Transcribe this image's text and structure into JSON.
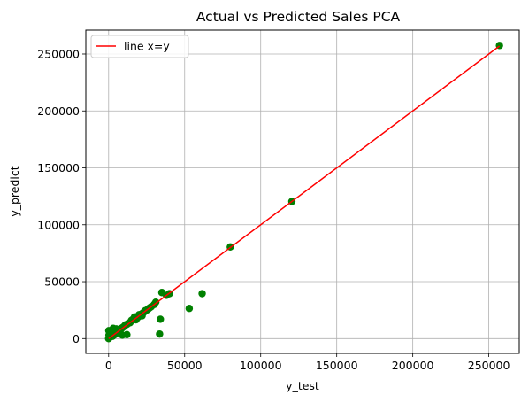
{
  "chart_data": {
    "type": "scatter",
    "title": "Actual vs Predicted Sales PCA",
    "xlabel": "y_test",
    "ylabel": "y_predict",
    "xlim": [
      -15000,
      270000
    ],
    "ylim": [
      -13000,
      271000
    ],
    "xticks": [
      0,
      50000,
      100000,
      150000,
      200000,
      250000
    ],
    "xtick_labels": [
      "0",
      "50000",
      "100000",
      "150000",
      "200000",
      "250000"
    ],
    "yticks": [
      0,
      50000,
      100000,
      150000,
      200000,
      250000
    ],
    "ytick_labels": [
      "0",
      "50000",
      "100000",
      "150000",
      "200000",
      "250000"
    ],
    "grid": true,
    "legend_position": "top-left",
    "series": [
      {
        "kind": "line",
        "name": "line x=y",
        "color": "#ff0000",
        "x": [
          0,
          257000
        ],
        "y": [
          0,
          257000
        ]
      },
      {
        "kind": "scatter",
        "color": "#008000",
        "x": [
          257000,
          120500,
          80000,
          40000,
          38000,
          35000,
          61500,
          53000,
          34000,
          33500,
          31000,
          28000,
          27000,
          25000,
          23000,
          21000,
          19500,
          18000,
          16000,
          14000,
          12000,
          10500,
          9000,
          8000,
          7000,
          6000,
          5000,
          4000,
          3000,
          2000,
          1000,
          500,
          1500,
          2500,
          3500,
          4500,
          5500,
          6500,
          7500,
          8500,
          9500,
          11000,
          13000,
          15000,
          17000,
          20000,
          22000,
          24000,
          26000,
          0,
          200,
          100,
          12000,
          9000,
          14000,
          18000,
          22000,
          30000,
          5000,
          3000
        ],
        "y": [
          257500,
          120500,
          80500,
          39500,
          38000,
          40500,
          39500,
          26500,
          17000,
          4000,
          32000,
          28000,
          27000,
          25000,
          23000,
          21000,
          19000,
          18000,
          17000,
          14000,
          12500,
          11000,
          9500,
          8500,
          7500,
          6500,
          5500,
          4500,
          3500,
          2500,
          1500,
          6500,
          7000,
          2000,
          3000,
          4000,
          5000,
          6000,
          7000,
          9000,
          10000,
          12000,
          13500,
          16000,
          19000,
          21000,
          22000,
          24500,
          26000,
          0,
          3000,
          7000,
          3500,
          3000,
          14000,
          16500,
          20000,
          30000,
          8500,
          9000
        ]
      }
    ]
  }
}
